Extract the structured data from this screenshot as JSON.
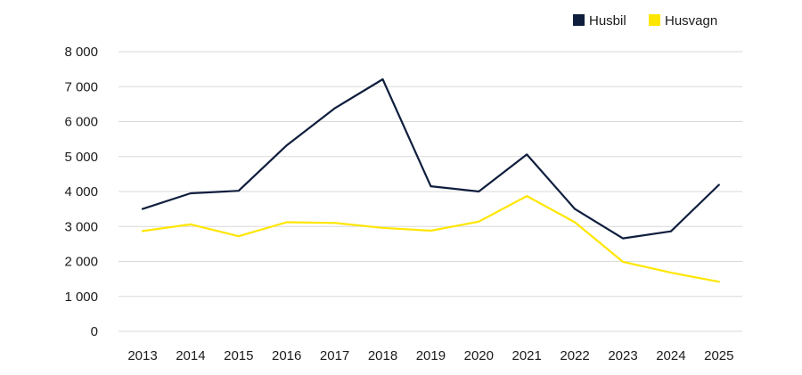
{
  "chart_data": {
    "type": "line",
    "title": "",
    "xlabel": "",
    "ylabel": "",
    "categories": [
      "2013",
      "2014",
      "2015",
      "2016",
      "2017",
      "2018",
      "2019",
      "2020",
      "2021",
      "2022",
      "2023",
      "2024",
      "2025"
    ],
    "ylim": [
      0,
      8000
    ],
    "yticks": [
      0,
      1000,
      2000,
      3000,
      4000,
      5000,
      6000,
      7000,
      8000
    ],
    "ytick_labels": [
      "0",
      "1 000",
      "2 000",
      "3 000",
      "4 000",
      "5 000",
      "6 000",
      "7 000",
      "8 000"
    ],
    "grid": true,
    "legend_position": "top-right",
    "series": [
      {
        "name": "Husbil",
        "color": "#0f1e3d",
        "values": [
          3500,
          3950,
          4020,
          5320,
          6380,
          7210,
          4150,
          4000,
          5060,
          3500,
          2660,
          2860,
          4190
        ]
      },
      {
        "name": "Husvagn",
        "color": "#ffe600",
        "values": [
          2870,
          3060,
          2720,
          3120,
          3100,
          2960,
          2880,
          3140,
          3870,
          3120,
          1990,
          1680,
          1420
        ]
      }
    ]
  }
}
